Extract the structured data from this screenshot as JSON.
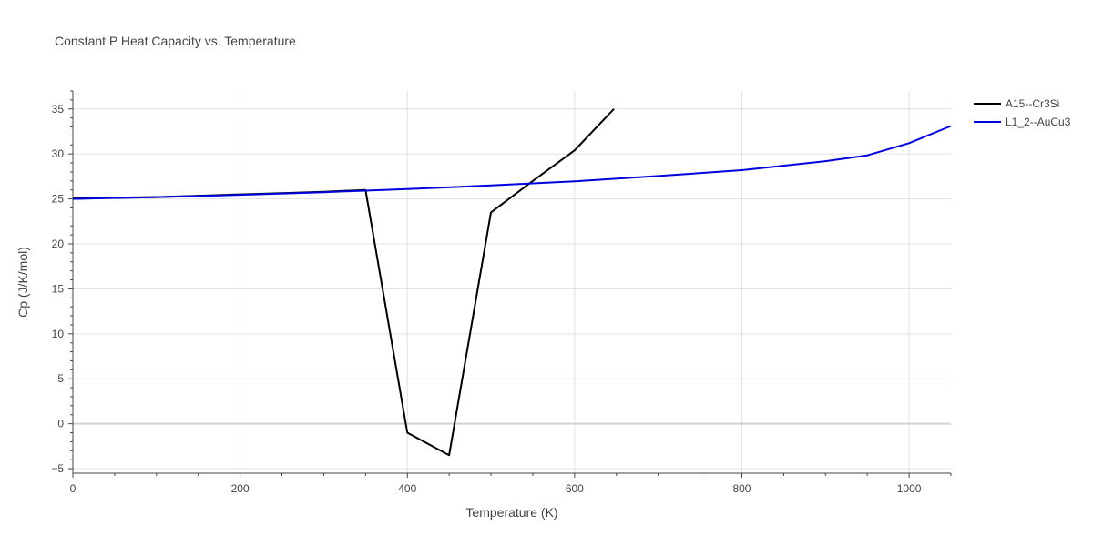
{
  "chart_data": {
    "type": "line",
    "title": "Constant P Heat Capacity vs. Temperature",
    "xlabel": "Temperature (K)",
    "ylabel": "Cp (J/K/mol)",
    "xlim": [
      0,
      1050
    ],
    "ylim": [
      -5.5,
      37
    ],
    "xticks": [
      0,
      200,
      400,
      600,
      800,
      1000
    ],
    "yticks": [
      -5,
      0,
      5,
      10,
      15,
      20,
      25,
      30,
      35
    ],
    "grid": true,
    "legend_position": "top-right",
    "series": [
      {
        "name": "A15--Cr3Si",
        "color": "#000000",
        "x": [
          0,
          50,
          100,
          150,
          200,
          250,
          300,
          350,
          400,
          450,
          500,
          550,
          600,
          647
        ],
        "y": [
          25.1,
          25.15,
          25.2,
          25.35,
          25.5,
          25.65,
          25.8,
          26.0,
          -1.0,
          -3.5,
          23.5,
          27.0,
          30.4,
          35.0
        ]
      },
      {
        "name": "L1_2--AuCu3",
        "color": "#0000dd",
        "x": [
          0,
          100,
          200,
          300,
          400,
          500,
          600,
          700,
          800,
          900,
          950,
          1000,
          1050
        ],
        "y": [
          25.0,
          25.2,
          25.45,
          25.75,
          26.1,
          26.5,
          26.95,
          27.55,
          28.2,
          29.2,
          29.85,
          31.2,
          33.1
        ]
      }
    ]
  }
}
